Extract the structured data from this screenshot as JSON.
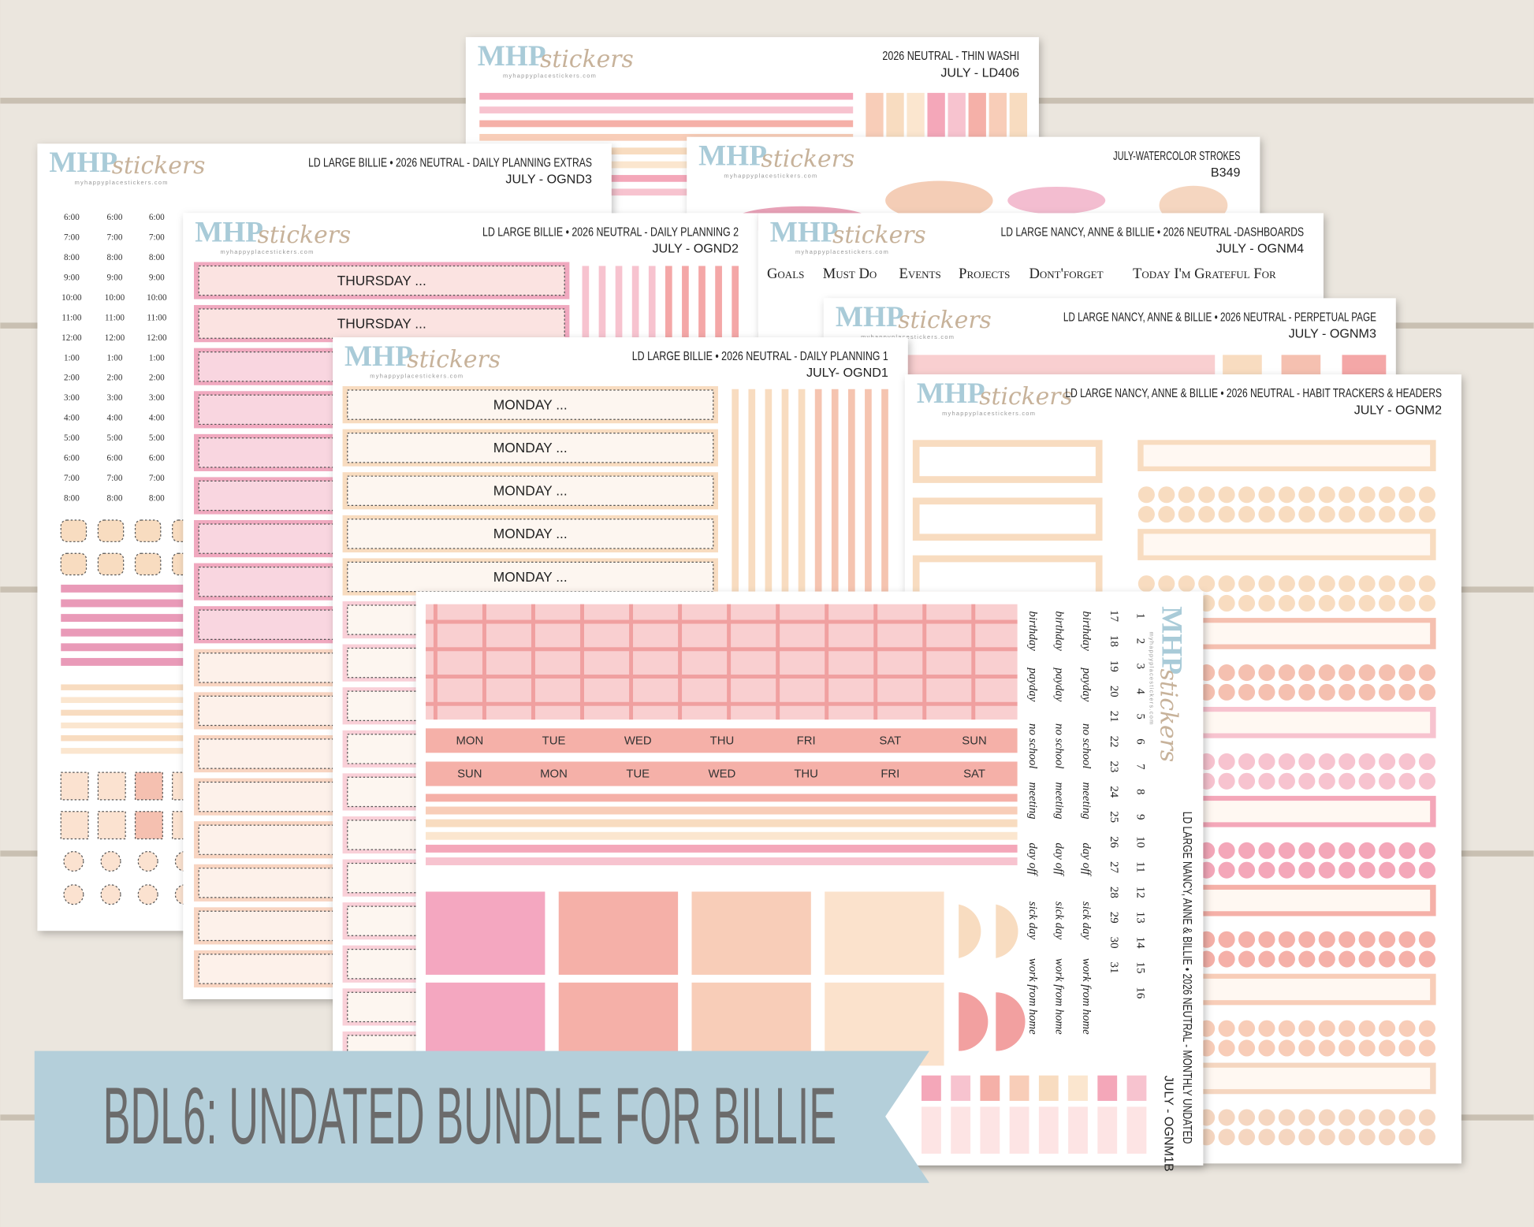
{
  "banner": "BDL6: UNDATED BUNDLE FOR BILLIE",
  "logo": {
    "brand": "MHP",
    "script": "stickers",
    "url": "myhappyplacestickers.com"
  },
  "sheets": [
    {
      "title": "2026 NEUTRAL - THIN WASHI",
      "code": "JULY - LD406"
    },
    {
      "title": "LD LARGE BILLIE • 2026 NEUTRAL - DAILY PLANNING EXTRAS",
      "code": "JULY - OGND3",
      "times": [
        "6:00",
        "7:00",
        "8:00",
        "9:00",
        "10:00",
        "11:00",
        "12:00",
        "1:00",
        "2:00",
        "3:00",
        "4:00",
        "5:00",
        "6:00",
        "7:00",
        "8:00"
      ]
    },
    {
      "title": "JULY-WATERCOLOR STROKES",
      "code": "B349"
    },
    {
      "title": "LD LARGE BILLIE • 2026 NEUTRAL - DAILY PLANNING 2",
      "code": "JULY - OGND2",
      "labels": [
        "THURSDAY ...",
        "THURSDAY ..."
      ]
    },
    {
      "title": "LD LARGE NANCY, ANNE & BILLIE • 2026 NEUTRAL -DASHBOARDS",
      "code": "JULY - OGNM4",
      "words": [
        "Goals",
        "Must Do",
        "Events",
        "Projects",
        "Dont'forget",
        "Today I'm Grateful For"
      ]
    },
    {
      "title": "LD LARGE NANCY, ANNE & BILLIE • 2026 NEUTRAL - PERPETUAL PAGE",
      "code": "JULY - OGNM3"
    },
    {
      "title": "LD LARGE BILLIE • 2026 NEUTRAL - DAILY PLANNING 1",
      "code": "JULY- OGND1",
      "labels": [
        "MONDAY ...",
        "MONDAY ...",
        "MONDAY ...",
        "MONDAY ...",
        "MONDAY ..."
      ]
    },
    {
      "title": "LD LARGE NANCY, ANNE & BILLIE • 2026 NEUTRAL - HABIT TRACKERS & HEADERS",
      "code": "JULY - OGNM2"
    },
    {
      "title": "LD LARGE NANCY, ANNE & BILLIE • 2026 NEUTRAL - MONTHLY UNDATED",
      "code": "JULY - OGNM1B",
      "days_a": [
        "MON",
        "TUE",
        "WED",
        "THU",
        "FRI",
        "SAT",
        "SUN"
      ],
      "days_b": [
        "SUN",
        "MON",
        "TUE",
        "WED",
        "THU",
        "FRI",
        "SAT"
      ],
      "words": [
        "birthday",
        "payday",
        "no school",
        "meeting",
        "day off",
        "sick day",
        "work from home"
      ],
      "numbers_a": [
        1,
        2,
        3,
        4,
        5,
        6,
        7,
        8,
        9,
        10,
        11,
        12,
        13,
        14,
        15,
        16
      ],
      "numbers_b": [
        17,
        18,
        19,
        20,
        21,
        22,
        23,
        24,
        25,
        26,
        27,
        28,
        29,
        30,
        31
      ]
    }
  ]
}
